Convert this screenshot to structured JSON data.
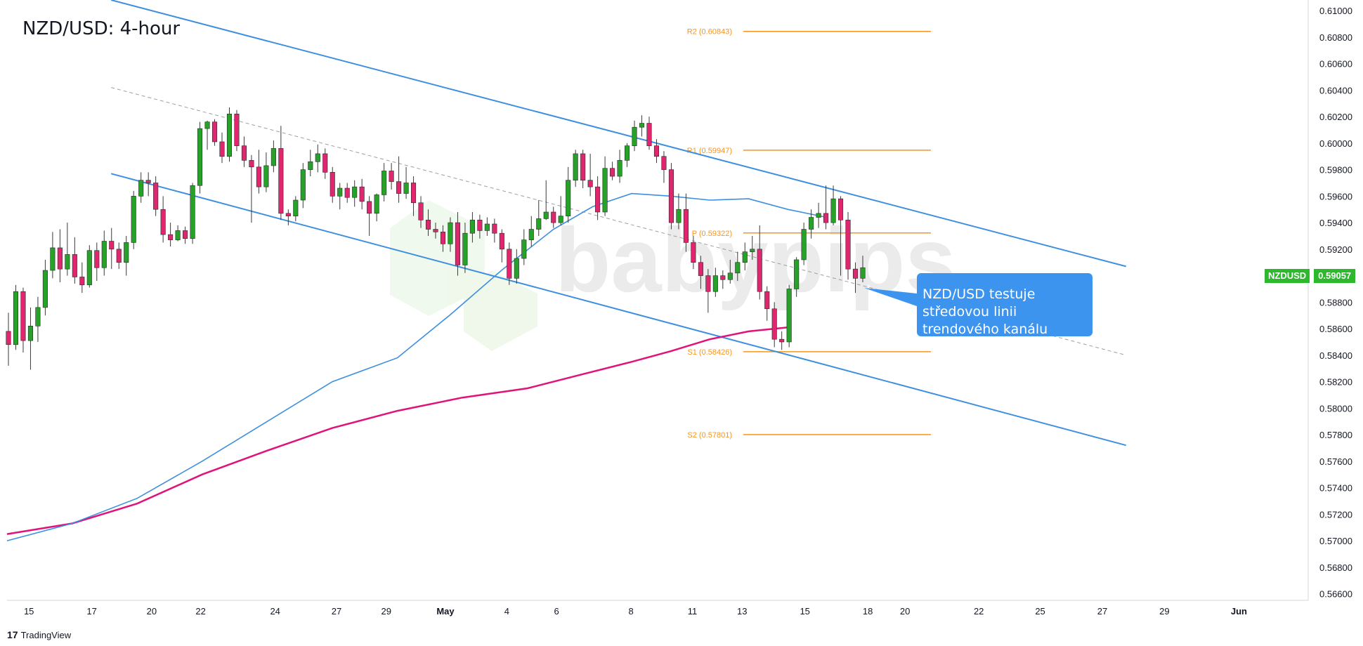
{
  "title": "NZD/USD: 4-hour",
  "symbol": "NZDUSD",
  "last_price": "0.59057",
  "callout_text": "NZD/USD testuje středovou linii trendového kanálu",
  "brand": "TradingView",
  "watermark": "babypips",
  "colors": {
    "bull": "#26a228",
    "bear": "#e0266e",
    "channel": "#3d8fe0",
    "ma_fast": "#3d8fe0",
    "ma_slow": "#e0137a",
    "pivot": "#f7941d",
    "callout": "#3d94ef"
  },
  "chart_data": {
    "type": "candlestick",
    "ylim": [
      0.5655,
      0.6108
    ],
    "yticks": [
      "0.61000",
      "0.60800",
      "0.60600",
      "0.60400",
      "0.60200",
      "0.60000",
      "0.59800",
      "0.59600",
      "0.59400",
      "0.59200",
      "0.59057",
      "0.58800",
      "0.58600",
      "0.58400",
      "0.58200",
      "0.58000",
      "0.57800",
      "0.57600",
      "0.57400",
      "0.57200",
      "0.57000",
      "0.56800",
      "0.56600"
    ],
    "xticks": [
      "15",
      "17",
      "20",
      "22",
      "24",
      "27",
      "29",
      "May",
      "4",
      "6",
      "8",
      "11",
      "13",
      "15",
      "18",
      "20",
      "22",
      "25",
      "27",
      "29",
      "Jun"
    ],
    "pivot_levels": [
      {
        "label": "R2 (0.60843)",
        "value": 0.60843
      },
      {
        "label": "R1 (0.59947)",
        "value": 0.59947
      },
      {
        "label": "P (0.59322)",
        "value": 0.59322
      },
      {
        "label": "S1 (0.58426)",
        "value": 0.58426
      },
      {
        "label": "S2 (0.57801)",
        "value": 0.57801
      }
    ],
    "candles": [
      [
        0.5858,
        0.5848,
        0.5872,
        0.5832
      ],
      [
        0.5848,
        0.5888,
        0.5893,
        0.5844
      ],
      [
        0.5888,
        0.5851,
        0.5891,
        0.5842
      ],
      [
        0.5851,
        0.5862,
        0.5876,
        0.5829
      ],
      [
        0.5862,
        0.5876,
        0.5884,
        0.585
      ],
      [
        0.5876,
        0.5904,
        0.5912,
        0.587
      ],
      [
        0.5904,
        0.5921,
        0.5933,
        0.5898
      ],
      [
        0.5921,
        0.5905,
        0.5935,
        0.5895
      ],
      [
        0.5905,
        0.5916,
        0.594,
        0.59
      ],
      [
        0.5916,
        0.5899,
        0.5929,
        0.5894
      ],
      [
        0.5899,
        0.5893,
        0.591,
        0.5887
      ],
      [
        0.5893,
        0.5919,
        0.5923,
        0.5891
      ],
      [
        0.5919,
        0.5906,
        0.5925,
        0.5896
      ],
      [
        0.5906,
        0.5926,
        0.5934,
        0.59
      ],
      [
        0.5926,
        0.592,
        0.5936,
        0.5905
      ],
      [
        0.592,
        0.591,
        0.5925,
        0.5905
      ],
      [
        0.591,
        0.5925,
        0.593,
        0.59
      ],
      [
        0.5925,
        0.596,
        0.5964,
        0.592
      ],
      [
        0.596,
        0.5972,
        0.5978,
        0.5955
      ],
      [
        0.5972,
        0.597,
        0.5978,
        0.596
      ],
      [
        0.597,
        0.595,
        0.5975,
        0.5945
      ],
      [
        0.595,
        0.5931,
        0.596,
        0.5925
      ],
      [
        0.5931,
        0.5927,
        0.594,
        0.5922
      ],
      [
        0.5927,
        0.5934,
        0.5938,
        0.5926
      ],
      [
        0.5934,
        0.5928,
        0.5937,
        0.5924
      ],
      [
        0.5928,
        0.5968,
        0.597,
        0.5924
      ],
      [
        0.5968,
        0.6011,
        0.6016,
        0.5962
      ],
      [
        0.6011,
        0.6016,
        0.6017,
        0.5995
      ],
      [
        0.6016,
        0.6001,
        0.6018,
        0.5998
      ],
      [
        0.6001,
        0.599,
        0.6008,
        0.5985
      ],
      [
        0.599,
        0.6022,
        0.6027,
        0.5986
      ],
      [
        0.6022,
        0.5998,
        0.6025,
        0.5994
      ],
      [
        0.5998,
        0.5987,
        0.6005,
        0.5982
      ],
      [
        0.5987,
        0.5982,
        0.5991,
        0.594
      ],
      [
        0.5982,
        0.5967,
        0.5995,
        0.5962
      ],
      [
        0.5967,
        0.5983,
        0.5993,
        0.5963
      ],
      [
        0.5983,
        0.5996,
        0.6002,
        0.5978
      ],
      [
        0.5996,
        0.5947,
        0.6013,
        0.5942
      ],
      [
        0.5947,
        0.5945,
        0.595,
        0.5938
      ],
      [
        0.5945,
        0.5957,
        0.596,
        0.5941
      ],
      [
        0.5957,
        0.598,
        0.5985,
        0.5951
      ],
      [
        0.598,
        0.5986,
        0.5995,
        0.5975
      ],
      [
        0.5986,
        0.5992,
        0.5999,
        0.5978
      ],
      [
        0.5992,
        0.5978,
        0.5996,
        0.5973
      ],
      [
        0.5978,
        0.596,
        0.5982,
        0.5955
      ],
      [
        0.596,
        0.5966,
        0.597,
        0.595
      ],
      [
        0.5966,
        0.5959,
        0.597,
        0.5955
      ],
      [
        0.5959,
        0.5967,
        0.5972,
        0.5952
      ],
      [
        0.5967,
        0.5956,
        0.5973,
        0.595
      ],
      [
        0.5956,
        0.5947,
        0.596,
        0.593
      ],
      [
        0.5947,
        0.5961,
        0.5962,
        0.5941
      ],
      [
        0.5961,
        0.5979,
        0.5985,
        0.5956
      ],
      [
        0.5979,
        0.5971,
        0.5985,
        0.5965
      ],
      [
        0.5971,
        0.5962,
        0.599,
        0.5955
      ],
      [
        0.5962,
        0.597,
        0.5982,
        0.5958
      ],
      [
        0.597,
        0.5955,
        0.5975,
        0.5945
      ],
      [
        0.5955,
        0.5942,
        0.596,
        0.5936
      ],
      [
        0.5942,
        0.5935,
        0.595,
        0.593
      ],
      [
        0.5935,
        0.5933,
        0.594,
        0.5928
      ],
      [
        0.5933,
        0.5924,
        0.5938,
        0.5918
      ],
      [
        0.5924,
        0.594,
        0.5944,
        0.5918
      ],
      [
        0.594,
        0.5908,
        0.5948,
        0.59
      ],
      [
        0.5908,
        0.5932,
        0.594,
        0.5902
      ],
      [
        0.5932,
        0.5942,
        0.5948,
        0.5925
      ],
      [
        0.5942,
        0.5934,
        0.5946,
        0.5928
      ],
      [
        0.5934,
        0.5939,
        0.5944,
        0.593
      ],
      [
        0.5939,
        0.5932,
        0.5943,
        0.5925
      ],
      [
        0.5932,
        0.592,
        0.5935,
        0.591
      ],
      [
        0.592,
        0.5898,
        0.5925,
        0.5893
      ],
      [
        0.5898,
        0.5913,
        0.592,
        0.5894
      ],
      [
        0.5913,
        0.5927,
        0.5935,
        0.5908
      ],
      [
        0.5927,
        0.5935,
        0.5945,
        0.5922
      ],
      [
        0.5935,
        0.5943,
        0.5957,
        0.593
      ],
      [
        0.5943,
        0.5948,
        0.5972,
        0.5942
      ],
      [
        0.5948,
        0.594,
        0.5952,
        0.5936
      ],
      [
        0.594,
        0.5945,
        0.596,
        0.5938
      ],
      [
        0.5945,
        0.5972,
        0.5982,
        0.594
      ],
      [
        0.5972,
        0.5992,
        0.5995,
        0.5967
      ],
      [
        0.5992,
        0.5972,
        0.5995,
        0.5966
      ],
      [
        0.5972,
        0.5967,
        0.5992,
        0.596
      ],
      [
        0.5967,
        0.5948,
        0.5975,
        0.5942
      ],
      [
        0.5948,
        0.5981,
        0.599,
        0.5945
      ],
      [
        0.5981,
        0.5975,
        0.5986,
        0.5972
      ],
      [
        0.5975,
        0.5987,
        0.5995,
        0.597
      ],
      [
        0.5987,
        0.5998,
        0.6,
        0.5982
      ],
      [
        0.5998,
        0.6012,
        0.6017,
        0.5994
      ],
      [
        0.6012,
        0.6015,
        0.6021,
        0.6005
      ],
      [
        0.6015,
        0.5998,
        0.602,
        0.5995
      ],
      [
        0.5998,
        0.599,
        0.6003,
        0.5985
      ],
      [
        0.599,
        0.598,
        0.5994,
        0.597
      ],
      [
        0.598,
        0.594,
        0.5985,
        0.5935
      ],
      [
        0.594,
        0.595,
        0.5962,
        0.5935
      ],
      [
        0.595,
        0.5925,
        0.5962,
        0.5918
      ],
      [
        0.5925,
        0.591,
        0.593,
        0.5905
      ],
      [
        0.591,
        0.59,
        0.5915,
        0.589
      ],
      [
        0.59,
        0.5888,
        0.5905,
        0.5872
      ],
      [
        0.5888,
        0.59,
        0.5906,
        0.5884
      ],
      [
        0.59,
        0.5897,
        0.5904,
        0.589
      ],
      [
        0.5897,
        0.5902,
        0.5912,
        0.5894
      ],
      [
        0.5902,
        0.591,
        0.5918,
        0.5896
      ],
      [
        0.591,
        0.5918,
        0.5925,
        0.5904
      ],
      [
        0.5918,
        0.592,
        0.593,
        0.5912
      ],
      [
        0.592,
        0.5888,
        0.5938,
        0.5882
      ],
      [
        0.5888,
        0.5875,
        0.5892,
        0.5866
      ],
      [
        0.5875,
        0.5852,
        0.588,
        0.5846
      ],
      [
        0.5852,
        0.585,
        0.5858,
        0.5844
      ],
      [
        0.585,
        0.589,
        0.5893,
        0.5846
      ],
      [
        0.589,
        0.5912,
        0.5914,
        0.5884
      ],
      [
        0.5912,
        0.5935,
        0.594,
        0.5908
      ],
      [
        0.5935,
        0.5944,
        0.595,
        0.5928
      ],
      [
        0.5944,
        0.5947,
        0.5955,
        0.5936
      ],
      [
        0.5947,
        0.594,
        0.5968,
        0.5935
      ],
      [
        0.594,
        0.5958,
        0.5968,
        0.5938
      ],
      [
        0.5958,
        0.5942,
        0.596,
        0.59
      ],
      [
        0.5942,
        0.5905,
        0.5948,
        0.5897
      ],
      [
        0.5905,
        0.5898,
        0.591,
        0.5887
      ],
      [
        0.5898,
        0.5906,
        0.5915,
        0.5895
      ]
    ],
    "ma_fast": [
      [
        0,
        0.57
      ],
      [
        0.05,
        0.5713
      ],
      [
        0.1,
        0.5732
      ],
      [
        0.15,
        0.576
      ],
      [
        0.2,
        0.579
      ],
      [
        0.25,
        0.582
      ],
      [
        0.3,
        0.5838
      ],
      [
        0.34,
        0.587
      ],
      [
        0.38,
        0.5904
      ],
      [
        0.42,
        0.5935
      ],
      [
        0.45,
        0.5952
      ],
      [
        0.48,
        0.5962
      ],
      [
        0.51,
        0.596
      ],
      [
        0.54,
        0.5957
      ],
      [
        0.57,
        0.5958
      ],
      [
        0.6,
        0.595
      ],
      [
        0.63,
        0.5944
      ]
    ],
    "ma_slow": [
      [
        0,
        0.5705
      ],
      [
        0.05,
        0.5713
      ],
      [
        0.1,
        0.5728
      ],
      [
        0.15,
        0.575
      ],
      [
        0.2,
        0.5768
      ],
      [
        0.25,
        0.5785
      ],
      [
        0.3,
        0.5798
      ],
      [
        0.35,
        0.5808
      ],
      [
        0.4,
        0.5815
      ],
      [
        0.44,
        0.5825
      ],
      [
        0.48,
        0.5835
      ],
      [
        0.51,
        0.5843
      ],
      [
        0.54,
        0.5852
      ],
      [
        0.57,
        0.5858
      ],
      [
        0.6,
        0.5861
      ]
    ],
    "channel_upper": [
      [
        0.08,
        0.6108
      ],
      [
        0.86,
        0.5907
      ]
    ],
    "channel_mid": [
      [
        0.08,
        0.6042
      ],
      [
        0.86,
        0.584
      ]
    ],
    "channel_lower": [
      [
        0.08,
        0.5977
      ],
      [
        0.86,
        0.5772
      ]
    ]
  }
}
